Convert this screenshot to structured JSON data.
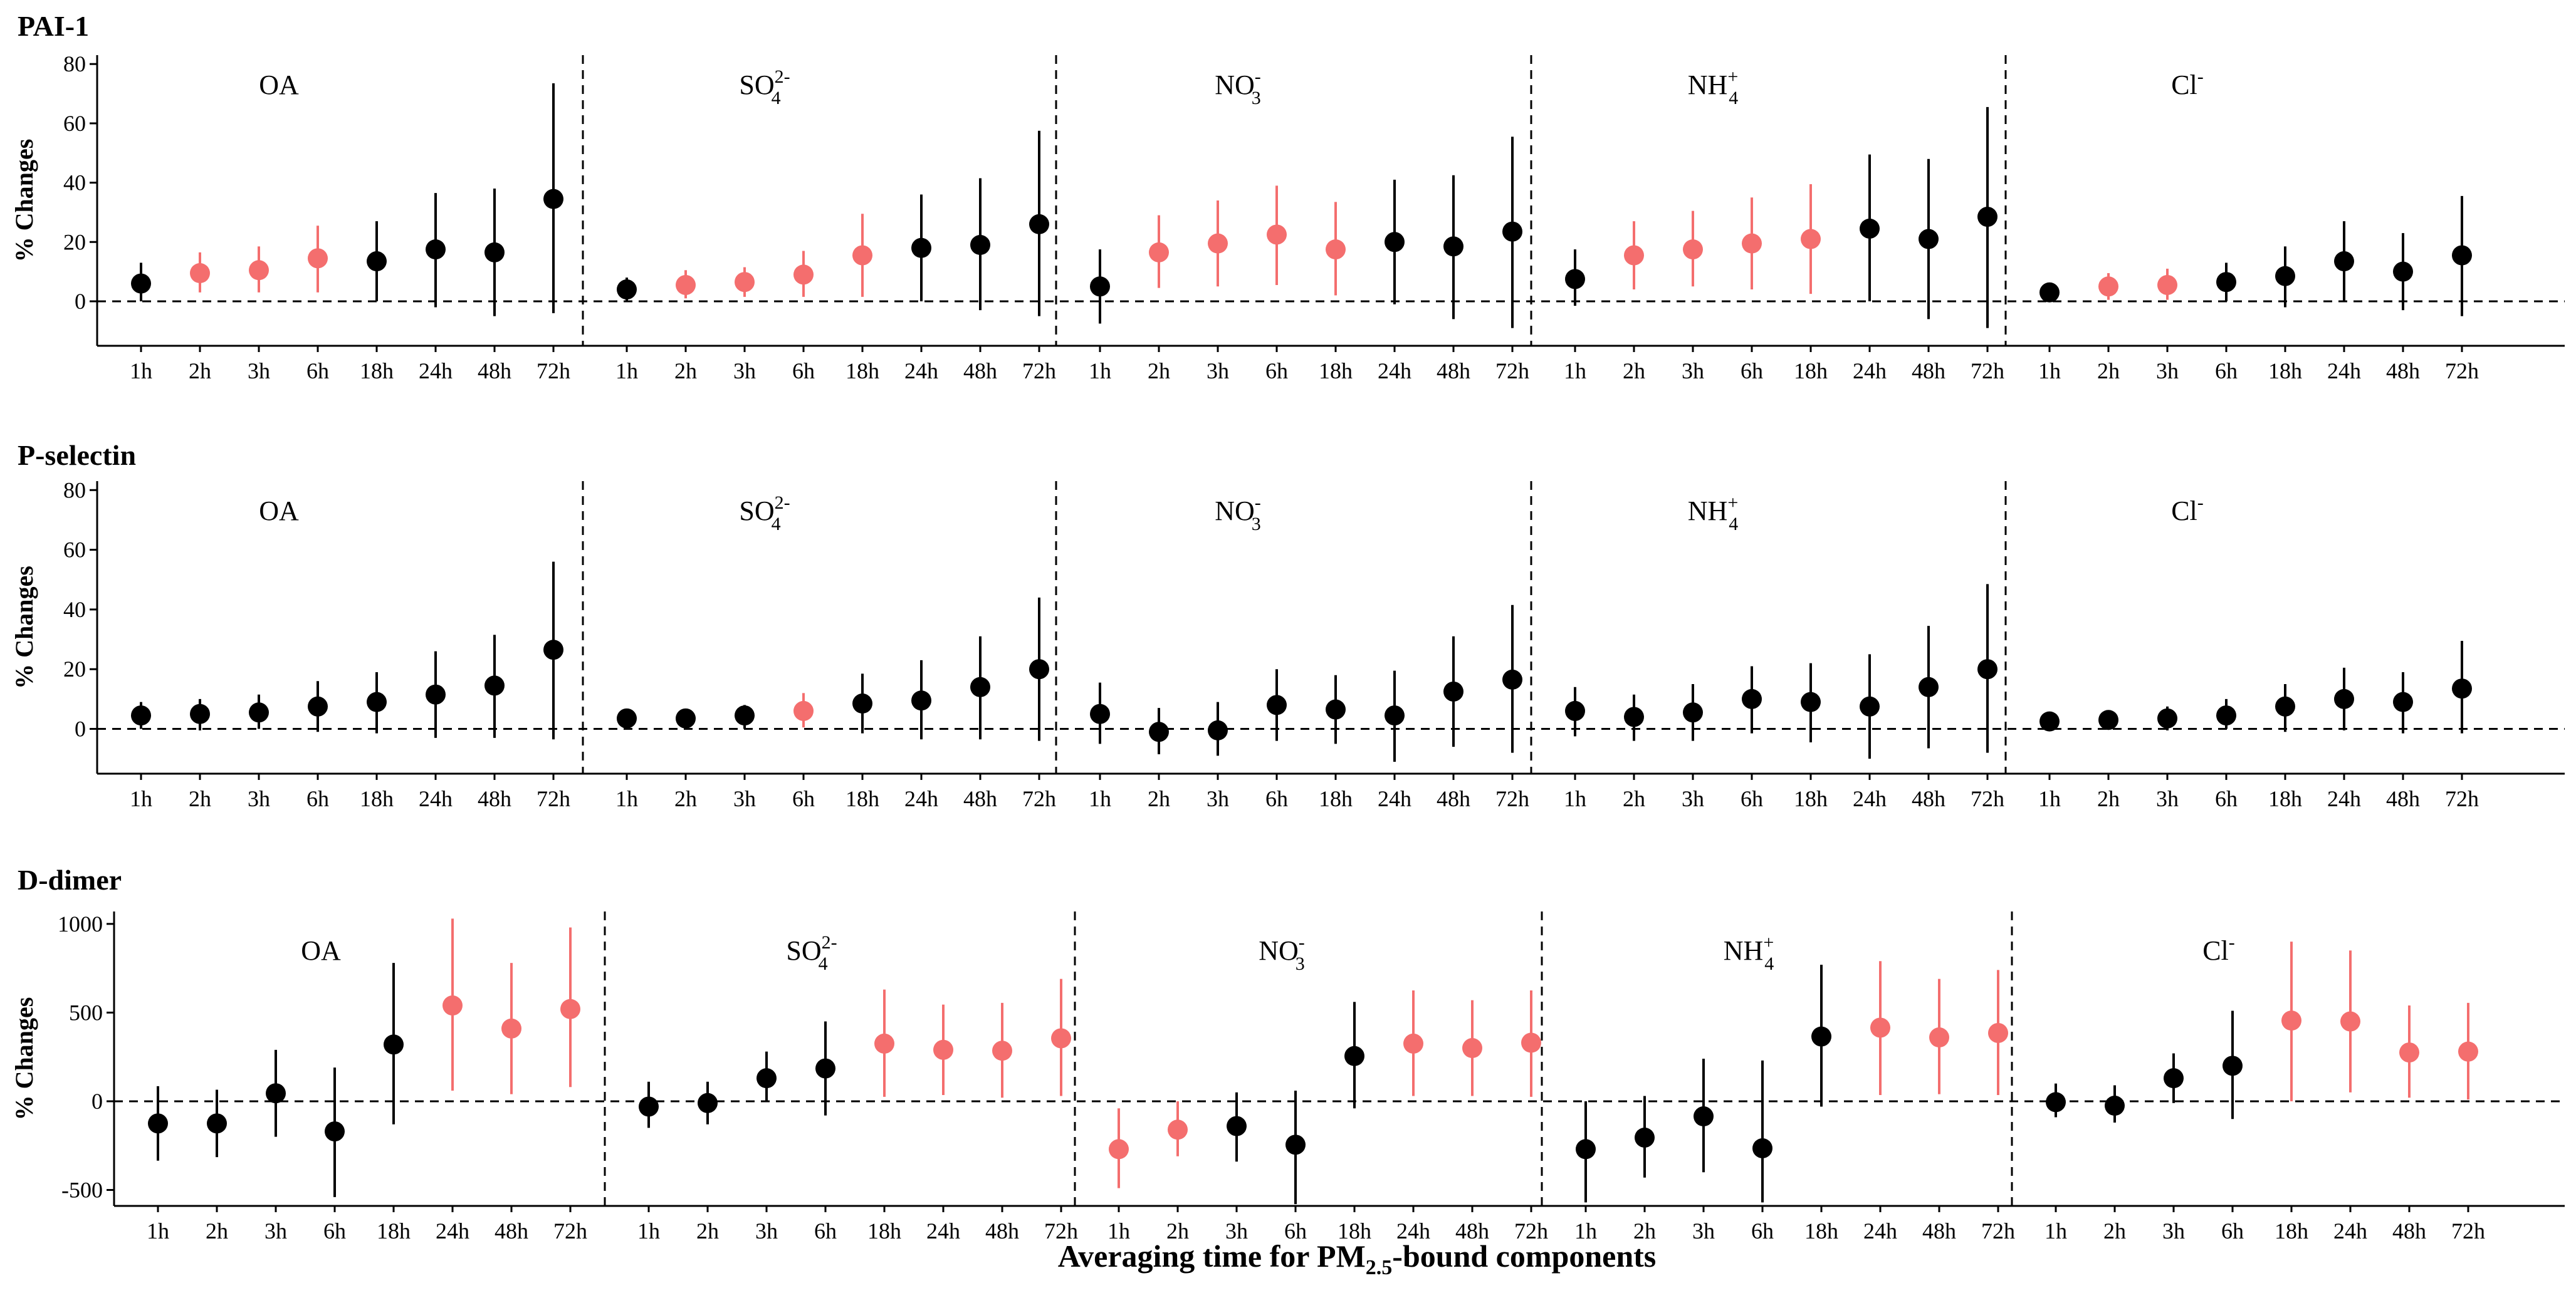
{
  "chart_data": {
    "type": "scatter",
    "xlabel": "Averaging time for PM2.5-bound components",
    "ylabel": "% Changes",
    "groups": [
      "OA",
      "SO4 2-",
      "NO3 -",
      "NH4 +",
      "Cl -"
    ],
    "group_labels": [
      {
        "base": "OA",
        "sub": "",
        "sup": ""
      },
      {
        "base": "SO",
        "sub": "4",
        "sup": "2-"
      },
      {
        "base": "NO",
        "sub": "3",
        "sup": "-"
      },
      {
        "base": "NH",
        "sub": "4",
        "sup": "+"
      },
      {
        "base": "Cl",
        "sub": "",
        "sup": "-"
      }
    ],
    "lags": [
      "1h",
      "2h",
      "3h",
      "6h",
      "18h",
      "24h",
      "48h",
      "72h"
    ],
    "colors": {
      "significant": "#f46e6e",
      "nonsignificant": "#000000"
    },
    "panels": [
      {
        "title": "PAI-1",
        "ylim": [
          -15,
          83
        ],
        "yticks": [
          0,
          20,
          40,
          60,
          80
        ],
        "series": [
          {
            "group": "OA",
            "estimate": [
              6,
              9.5,
              10.5,
              14.5,
              13.5,
              17.5,
              16.5,
              34.5
            ],
            "lower": [
              0,
              3,
              3,
              3,
              0,
              -2,
              -5,
              -4
            ],
            "upper": [
              13,
              16.5,
              18.5,
              25.5,
              27,
              36.5,
              38,
              73.5
            ],
            "significant": [
              false,
              true,
              true,
              true,
              false,
              false,
              false,
              false
            ]
          },
          {
            "group": "SO4 2-",
            "estimate": [
              4,
              5.5,
              6.5,
              9,
              15.5,
              18,
              19,
              26
            ],
            "lower": [
              0,
              1,
              1.5,
              1.5,
              1.5,
              0,
              -3,
              -5
            ],
            "upper": [
              8,
              10.5,
              11.5,
              17,
              29.5,
              36,
              41.5,
              57.5
            ],
            "significant": [
              false,
              true,
              true,
              true,
              true,
              false,
              false,
              false
            ]
          },
          {
            "group": "NO3 -",
            "estimate": [
              5,
              16.5,
              19.5,
              22.5,
              17.5,
              20,
              18.5,
              23.5
            ],
            "lower": [
              -7.5,
              4.5,
              5,
              5.5,
              2,
              -1,
              -6,
              -9
            ],
            "upper": [
              17.5,
              29,
              34,
              39,
              33.5,
              41,
              42.5,
              55.5
            ],
            "significant": [
              false,
              true,
              true,
              true,
              true,
              false,
              false,
              false
            ]
          },
          {
            "group": "NH4 +",
            "estimate": [
              7.5,
              15.5,
              17.5,
              19.5,
              21,
              24.5,
              21,
              28.5
            ],
            "lower": [
              -1.5,
              4,
              5,
              4,
              2.5,
              0,
              -6,
              -9
            ],
            "upper": [
              17.5,
              27,
              30.5,
              35,
              39.5,
              49.5,
              48,
              65.5
            ],
            "significant": [
              false,
              true,
              true,
              true,
              true,
              false,
              false,
              false
            ]
          },
          {
            "group": "Cl -",
            "estimate": [
              3,
              5,
              5.5,
              6.5,
              8.5,
              13.5,
              10,
              15.5
            ],
            "lower": [
              0,
              0.5,
              0.5,
              0,
              -2,
              0,
              -3,
              -5
            ],
            "upper": [
              6,
              9.5,
              11,
              13,
              18.5,
              27,
              23,
              35.5
            ],
            "significant": [
              false,
              true,
              true,
              false,
              false,
              false,
              false,
              false
            ]
          }
        ]
      },
      {
        "title": "P-selectin",
        "ylim": [
          -15,
          83
        ],
        "yticks": [
          0,
          20,
          40,
          60,
          80
        ],
        "series": [
          {
            "group": "OA",
            "estimate": [
              4.5,
              5,
              5.5,
              7.5,
              9,
              11.5,
              14.5,
              26.5
            ],
            "lower": [
              0,
              -0.5,
              0,
              -1,
              -1.5,
              -3,
              -3,
              -3.5
            ],
            "upper": [
              9,
              10,
              11.5,
              16,
              19,
              26,
              31.5,
              56
            ],
            "significant": [
              false,
              false,
              false,
              false,
              false,
              false,
              false,
              false
            ]
          },
          {
            "group": "SO4 2-",
            "estimate": [
              3.5,
              3.5,
              4.5,
              6,
              8.5,
              9.5,
              14,
              20
            ],
            "lower": [
              0.5,
              0,
              0,
              0.5,
              -1.5,
              -3.5,
              -3.5,
              -4
            ],
            "upper": [
              6,
              6.5,
              8,
              12,
              18.5,
              23,
              31,
              44
            ],
            "significant": [
              false,
              false,
              false,
              true,
              false,
              false,
              false,
              false
            ]
          },
          {
            "group": "NO3 -",
            "estimate": [
              5,
              -1,
              -0.5,
              8,
              6.5,
              4.5,
              12.5,
              16.5
            ],
            "lower": [
              -5,
              -8.5,
              -9,
              -4,
              -5,
              -11,
              -6,
              -8
            ],
            "upper": [
              15.5,
              7,
              9,
              20,
              18,
              19.5,
              31,
              41.5
            ],
            "significant": [
              false,
              false,
              false,
              false,
              false,
              false,
              false,
              false
            ]
          },
          {
            "group": "NH4 +",
            "estimate": [
              6,
              4,
              5.5,
              10,
              9,
              7.5,
              14,
              20
            ],
            "lower": [
              -2.5,
              -4,
              -4,
              -1.5,
              -4.5,
              -10,
              -6.5,
              -8
            ],
            "upper": [
              14,
              11.5,
              15,
              21,
              22,
              25,
              34.5,
              48.5
            ],
            "significant": [
              false,
              false,
              false,
              false,
              false,
              false,
              false,
              false
            ]
          },
          {
            "group": "Cl -",
            "estimate": [
              2.5,
              3,
              3.5,
              4.5,
              7.5,
              10,
              9,
              13.5
            ],
            "lower": [
              0,
              0,
              -0.5,
              0,
              -1,
              -0.5,
              -1.5,
              -1.5
            ],
            "upper": [
              4.5,
              5,
              7.5,
              10,
              15,
              20.5,
              19,
              29.5
            ],
            "significant": [
              false,
              false,
              false,
              false,
              false,
              false,
              false,
              false
            ]
          }
        ]
      },
      {
        "title": "D-dimer",
        "ylim": [
          -590,
          1070
        ],
        "yticks": [
          -500,
          0,
          500,
          1000
        ],
        "series": [
          {
            "group": "OA",
            "estimate": [
              -125,
              -125,
              45,
              -170,
              320,
              540,
              410,
              520
            ],
            "lower": [
              -335,
              -315,
              -200,
              -540,
              -130,
              60,
              40,
              80
            ],
            "upper": [
              85,
              65,
              290,
              190,
              780,
              1030,
              780,
              980
            ],
            "significant": [
              false,
              false,
              false,
              false,
              false,
              true,
              true,
              true
            ]
          },
          {
            "group": "SO4 2-",
            "estimate": [
              -30,
              -10,
              130,
              185,
              325,
              290,
              285,
              355
            ],
            "lower": [
              -150,
              -130,
              0,
              -80,
              25,
              35,
              20,
              30
            ],
            "upper": [
              110,
              110,
              280,
              450,
              630,
              545,
              555,
              690
            ],
            "significant": [
              false,
              false,
              false,
              false,
              true,
              true,
              true,
              true
            ]
          },
          {
            "group": "NO3 -",
            "estimate": [
              -270,
              -160,
              -140,
              -245,
              255,
              325,
              300,
              330
            ],
            "lower": [
              -490,
              -310,
              -340,
              -580,
              -40,
              30,
              30,
              25
            ],
            "upper": [
              -40,
              0,
              50,
              60,
              560,
              625,
              570,
              625
            ],
            "significant": [
              true,
              true,
              false,
              false,
              false,
              true,
              true,
              true
            ]
          },
          {
            "group": "NH4 +",
            "estimate": [
              -270,
              -205,
              -85,
              -265,
              365,
              415,
              360,
              385
            ],
            "lower": [
              -570,
              -430,
              -400,
              -570,
              -30,
              35,
              40,
              35
            ],
            "upper": [
              0,
              30,
              240,
              230,
              770,
              790,
              690,
              740
            ],
            "significant": [
              false,
              false,
              false,
              false,
              false,
              true,
              true,
              true
            ]
          },
          {
            "group": "Cl -",
            "estimate": [
              -5,
              -25,
              130,
              200,
              455,
              450,
              275,
              280
            ],
            "lower": [
              -90,
              -120,
              -10,
              -100,
              0,
              50,
              20,
              10
            ],
            "upper": [
              100,
              90,
              270,
              510,
              900,
              850,
              540,
              555
            ],
            "significant": [
              false,
              false,
              false,
              false,
              true,
              true,
              true,
              true
            ]
          }
        ]
      }
    ]
  }
}
